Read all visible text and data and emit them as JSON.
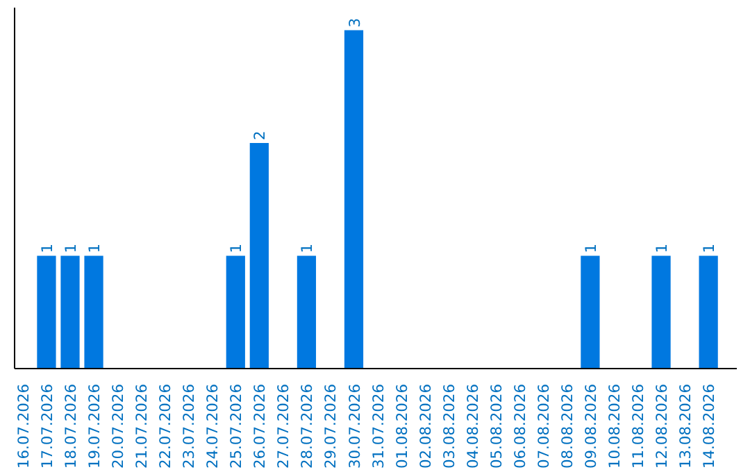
{
  "chart_data": {
    "type": "bar",
    "categories": [
      "16.07.2026",
      "17.07.2026",
      "18.07.2026",
      "19.07.2026",
      "20.07.2026",
      "21.07.2026",
      "22.07.2026",
      "23.07.2026",
      "24.07.2026",
      "25.07.2026",
      "26.07.2026",
      "27.07.2026",
      "28.07.2026",
      "29.07.2026",
      "30.07.2026",
      "31.07.2026",
      "01.08.2026",
      "02.08.2026",
      "03.08.2026",
      "04.08.2026",
      "05.08.2026",
      "06.08.2026",
      "07.08.2026",
      "08.08.2026",
      "09.08.2026",
      "10.08.2026",
      "11.08.2026",
      "12.08.2026",
      "13.08.2026",
      "14.08.2026"
    ],
    "values": [
      0,
      1,
      1,
      1,
      0,
      0,
      0,
      0,
      0,
      1,
      2,
      0,
      1,
      0,
      3,
      0,
      0,
      0,
      0,
      0,
      0,
      0,
      0,
      0,
      1,
      0,
      0,
      1,
      0,
      1
    ],
    "value_labels": [
      null,
      "1",
      "1",
      "1",
      null,
      null,
      null,
      null,
      null,
      "1",
      "2",
      null,
      "1",
      null,
      "3",
      null,
      null,
      null,
      null,
      null,
      null,
      null,
      null,
      null,
      "1",
      null,
      null,
      "1",
      null,
      "1"
    ],
    "color": "#0078e0",
    "ylim": [
      0,
      3.2
    ],
    "tick_labels": "x",
    "grid": false
  }
}
